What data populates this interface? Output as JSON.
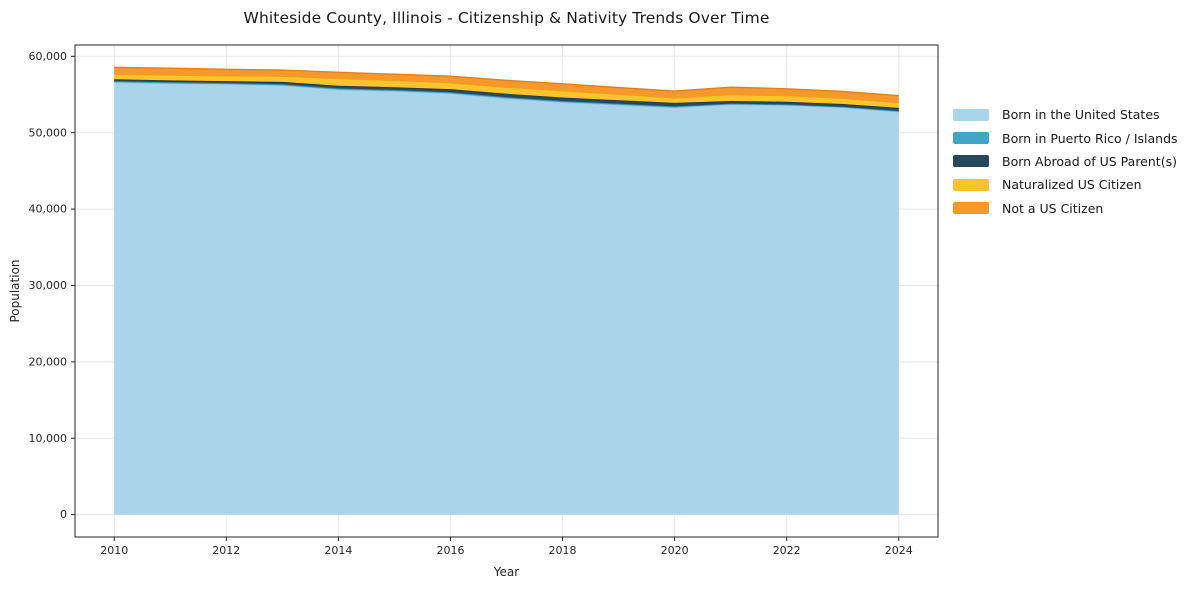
{
  "chart_data": {
    "type": "area",
    "stacked": true,
    "title": "Whiteside County, Illinois - Citizenship & Nativity Trends Over Time",
    "xlabel": "Year",
    "ylabel": "Population",
    "x": [
      2010,
      2011,
      2012,
      2013,
      2014,
      2015,
      2016,
      2017,
      2018,
      2019,
      2020,
      2021,
      2022,
      2023,
      2024
    ],
    "series": [
      {
        "name": "Born in the United States",
        "color": "#a9d4e9",
        "edge_color": "#8fc3de",
        "values": [
          56600,
          56450,
          56350,
          56200,
          55650,
          55450,
          55150,
          54500,
          54000,
          53650,
          53300,
          53700,
          53600,
          53300,
          52750
        ]
      },
      {
        "name": "Born in Puerto Rico / Islands",
        "color": "#41a6c4",
        "edge_color": "#358faa",
        "values": [
          150,
          150,
          150,
          150,
          150,
          150,
          150,
          150,
          150,
          150,
          150,
          100,
          100,
          100,
          100
        ]
      },
      {
        "name": "Born Abroad of US Parent(s)",
        "color": "#27475a",
        "edge_color": "#1e3a4a",
        "values": [
          250,
          250,
          250,
          300,
          350,
          350,
          400,
          450,
          450,
          450,
          450,
          350,
          350,
          350,
          400
        ]
      },
      {
        "name": "Naturalized US Citizen",
        "color": "#fcc32d",
        "edge_color": "#e2a61c",
        "values": [
          650,
          700,
          700,
          750,
          950,
          900,
          850,
          850,
          900,
          800,
          650,
          850,
          800,
          750,
          700
        ]
      },
      {
        "name": "Not a US Citizen",
        "color": "#f8982b",
        "edge_color": "#e2801a",
        "values": [
          900,
          900,
          850,
          800,
          800,
          800,
          850,
          900,
          900,
          850,
          900,
          950,
          900,
          900,
          900
        ]
      }
    ],
    "totals": [
      58550,
      58450,
      58300,
      58200,
      57900,
      57650,
      57400,
      56850,
      56400,
      55900,
      55450,
      55950,
      55750,
      55400,
      54850
    ],
    "xlim": [
      2009.3,
      2024.7
    ],
    "ylim": [
      -2930,
      61480
    ],
    "xticks": [
      2010,
      2012,
      2014,
      2016,
      2018,
      2020,
      2022,
      2024
    ],
    "xtick_labels": [
      "2010",
      "2012",
      "2014",
      "2016",
      "2018",
      "2020",
      "2022",
      "2024"
    ],
    "yticks": [
      0,
      10000,
      20000,
      30000,
      40000,
      50000,
      60000
    ],
    "ytick_labels": [
      "0",
      "10,000",
      "20,000",
      "30,000",
      "40,000",
      "50,000",
      "60,000"
    ],
    "grid": true,
    "grid_color": "#e7e7e7",
    "axis_color": "#262626",
    "text_color": "#262626",
    "background": "#ffffff",
    "legend_position": "right"
  }
}
